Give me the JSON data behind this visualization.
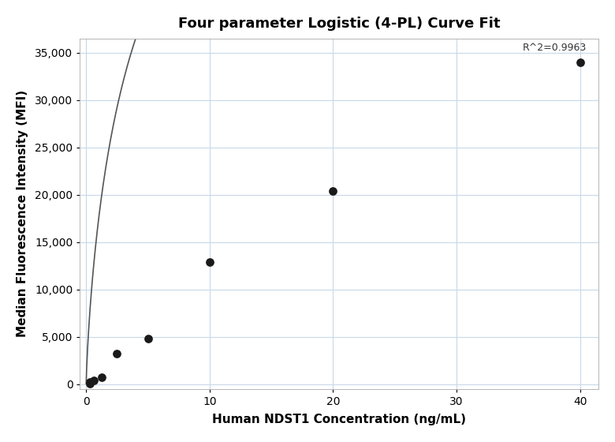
{
  "title": "Four parameter Logistic (4-PL) Curve Fit",
  "xlabel": "Human NDST1 Concentration (ng/mL)",
  "ylabel": "Median Fluorescence Intensity (MFI)",
  "r_squared": "R^2=0.9963",
  "scatter_x_full": [
    0.313,
    0.313,
    0.625,
    1.25,
    2.5,
    5.0,
    10.0,
    20.0,
    40.0
  ],
  "scatter_y_full": [
    80,
    200,
    380,
    700,
    3200,
    4800,
    12900,
    20400,
    34000
  ],
  "dot_color": "#1a1a1a",
  "dot_size": 60,
  "line_color": "#555555",
  "background_color": "#ffffff",
  "grid_color": "#c8d8e8",
  "xlim": [
    -0.5,
    41.5
  ],
  "ylim": [
    -500,
    36500
  ],
  "yticks": [
    0,
    5000,
    10000,
    15000,
    20000,
    25000,
    30000,
    35000
  ],
  "xticks": [
    0,
    10,
    20,
    30,
    40
  ],
  "title_fontsize": 13,
  "label_fontsize": 11,
  "tick_fontsize": 10,
  "figwidth": 7.8,
  "figheight": 5.6
}
